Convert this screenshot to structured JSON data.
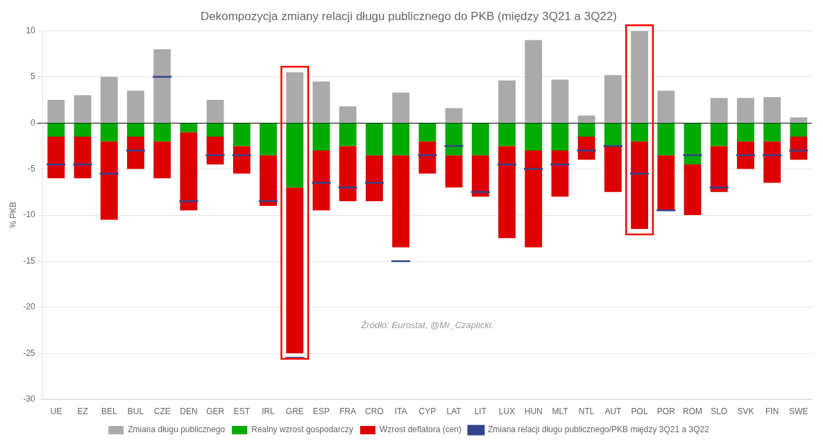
{
  "chart_data": {
    "type": "bar",
    "title": "Dekompozycja zmiany relacji długu publicznego do PKB (między 3Q21 a 3Q22)",
    "ylabel": "% PKB",
    "annotations": [
      "Źródło: Eurostat, @Mr_Czaplicki."
    ],
    "categories": [
      "UE",
      "EZ",
      "BEL",
      "BUL",
      "CZE",
      "DEN",
      "GER",
      "EST",
      "IRL",
      "GRE",
      "ESP",
      "FRA",
      "CRO",
      "ITA",
      "CYP",
      "LAT",
      "LIT",
      "LUX",
      "HUN",
      "MLT",
      "NTL",
      "AUT",
      "POL",
      "POR",
      "ROM",
      "SLO",
      "SVK",
      "FIN",
      "SWE"
    ],
    "stacked": true,
    "series": [
      {
        "name": "Zmiana długu publicznego",
        "color": "#aaaaaa",
        "values": [
          2.5,
          3.0,
          5.0,
          3.5,
          8.0,
          0.0,
          2.5,
          0.0,
          0.0,
          5.5,
          4.5,
          1.8,
          0.0,
          3.3,
          0.0,
          1.6,
          0.0,
          4.6,
          9.0,
          4.7,
          0.8,
          5.2,
          10.0,
          3.5,
          0.0,
          2.7,
          2.7,
          2.8,
          0.6
        ]
      },
      {
        "name": "Realny wzrost gospodarczy",
        "color": "#00aa00",
        "values": [
          -1.5,
          -1.5,
          -2.0,
          -1.5,
          -2.0,
          -1.0,
          -1.5,
          -2.5,
          -3.5,
          -7.0,
          -3.0,
          -2.5,
          -3.5,
          -3.5,
          -2.0,
          -3.5,
          -3.5,
          -2.5,
          -3.0,
          -3.0,
          -1.5,
          -2.5,
          -2.0,
          -3.5,
          -4.5,
          -2.5,
          -2.0,
          -2.0,
          -1.5
        ]
      },
      {
        "name": "Wzrost deflatora (cen)",
        "color": "#dd0000",
        "values": [
          -4.5,
          -4.5,
          -8.5,
          -3.5,
          -4.0,
          -8.5,
          -3.0,
          -3.0,
          -5.5,
          -18.0,
          -6.5,
          -6.0,
          -5.0,
          -10.0,
          -3.5,
          -3.5,
          -4.5,
          -10.0,
          -10.5,
          -5.0,
          -2.5,
          -5.0,
          -9.5,
          -6.0,
          -5.5,
          -5.0,
          -3.0,
          -4.5,
          -2.5
        ]
      },
      {
        "name": "Zmiana relacji długu publicznego/PKB między 3Q21 a 3Q22",
        "color": "#33448a",
        "type": "line",
        "marker": "line",
        "values": [
          -4.5,
          -4.5,
          -5.5,
          -3.0,
          5.0,
          -8.5,
          -3.5,
          -3.5,
          -8.5,
          -25.5,
          -6.5,
          -7.0,
          -6.5,
          -15.0,
          -3.5,
          -2.5,
          -7.5,
          -4.5,
          -5.0,
          -4.5,
          -3.0,
          -2.5,
          -5.5,
          -9.5,
          -3.5,
          -7.0,
          -3.5,
          -3.5,
          -3.0
        ]
      }
    ],
    "highlighted": [
      "GRE",
      "POL"
    ],
    "highlight_color": "#ff0000",
    "ylim": [
      -30,
      10
    ],
    "yticks": [
      -30,
      -25,
      -20,
      -15,
      -10,
      -5,
      0,
      5,
      10
    ],
    "grid": true,
    "legend": "bottom"
  }
}
